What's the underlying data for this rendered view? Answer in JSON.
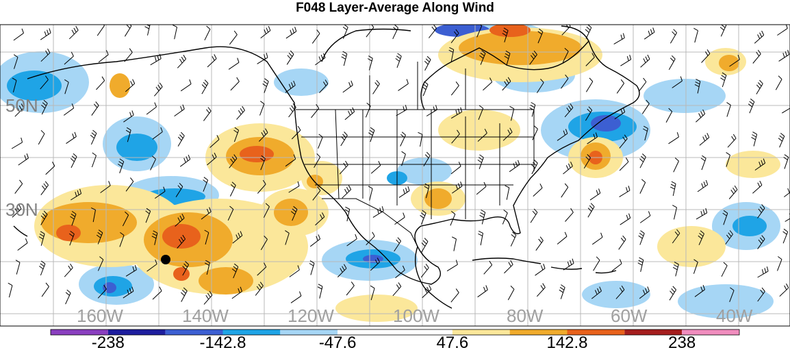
{
  "title": "F048 Layer-Average Along Wind",
  "map": {
    "lat_labels": [
      "50N",
      "30N"
    ],
    "lon_labels": [
      "160W",
      "140W",
      "120W",
      "100W",
      "80W",
      "60W",
      "40W"
    ],
    "marker": "storm-dot"
  },
  "colorbar": {
    "colors": [
      "#8a3fbf",
      "#1e1e9e",
      "#3c5fd2",
      "#1fa4e6",
      "#a6d6f5",
      "#ffffff",
      "#ffffff",
      "#fbe79a",
      "#f0ab2c",
      "#e8621c",
      "#a51e1e",
      "#f08dbe"
    ],
    "labels": [
      "-238",
      "-142.8",
      "-47.6",
      "47.6",
      "142.8",
      "238"
    ]
  }
}
